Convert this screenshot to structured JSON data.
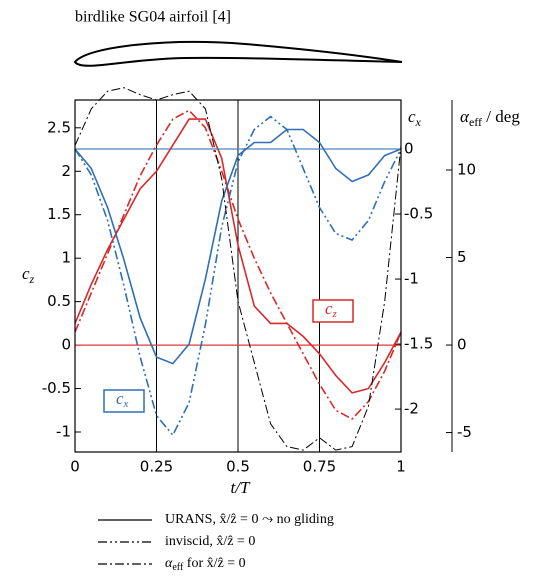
{
  "chart_data": {
    "type": "line",
    "title": "birdlike SG04 airfoil [4]",
    "xlabel": "t/T",
    "ylabel": {
      "text": "c",
      "sub": "z"
    },
    "y2label": {
      "text": "c",
      "sub": "x"
    },
    "y3label": {
      "text": "α",
      "sub": "eff",
      "rest": " / deg"
    },
    "x": [
      0,
      0.05,
      0.1,
      0.15,
      0.2,
      0.25,
      0.3,
      0.35,
      0.4,
      0.45,
      0.5,
      0.55,
      0.6,
      0.65,
      0.7,
      0.75,
      0.8,
      0.85,
      0.9,
      0.95,
      1
    ],
    "xlim": [
      0,
      1
    ],
    "xticks": [
      0,
      0.25,
      0.5,
      0.75,
      1
    ],
    "xgrid": true,
    "ylim": [
      -1.23,
      2.82
    ],
    "yticks": [
      -1,
      -0.5,
      0,
      0.5,
      1,
      1.5,
      2,
      2.5
    ],
    "y2lim": [
      -2.33,
      0.377
    ],
    "y2ticks": [
      -2,
      -1.5,
      -1,
      -0.5,
      0
    ],
    "y3lim": [
      -6.11,
      14
    ],
    "y3ticks": [
      -5,
      0,
      5,
      10
    ],
    "hlines": [
      {
        "axis": "y",
        "value": 0,
        "color": "#e03a3a"
      },
      {
        "axis": "y2",
        "value": 0,
        "color": "#4a86c8"
      }
    ],
    "series": [
      {
        "color": "#d62a2a",
        "style": "solid",
        "axis": "y",
        "values": [
          0.25,
          0.7,
          1.1,
          1.45,
          1.8,
          2.0,
          2.3,
          2.6,
          2.6,
          2.15,
          1.15,
          0.45,
          0.25,
          0.25,
          0.1,
          -0.1,
          -0.35,
          -0.55,
          -0.5,
          -0.2,
          0.15
        ]
      },
      {
        "color": "#d62a2a",
        "style": "dashdot",
        "axis": "y",
        "values": [
          0.15,
          0.6,
          1.05,
          1.5,
          1.95,
          2.3,
          2.6,
          2.7,
          2.5,
          2.0,
          1.45,
          1.0,
          0.6,
          0.25,
          -0.1,
          -0.45,
          -0.75,
          -0.85,
          -0.65,
          -0.3,
          0.15
        ]
      },
      {
        "color": "#2f6fb5",
        "style": "solid",
        "axis": "y2",
        "values": [
          0,
          -0.15,
          -0.45,
          -0.85,
          -1.3,
          -1.6,
          -1.65,
          -1.5,
          -1.0,
          -0.4,
          -0.05,
          0.05,
          0.05,
          0.15,
          0.15,
          0.05,
          -0.15,
          -0.25,
          -0.2,
          -0.05,
          0
        ]
      },
      {
        "color": "#2f6fb5",
        "style": "dashdotdot",
        "axis": "y2",
        "values": [
          0,
          -0.2,
          -0.55,
          -1.05,
          -1.6,
          -2.05,
          -2.2,
          -1.95,
          -1.35,
          -0.6,
          -0.1,
          0.15,
          0.25,
          0.15,
          -0.15,
          -0.45,
          -0.65,
          -0.7,
          -0.55,
          -0.25,
          0
        ]
      },
      {
        "color": "#000000",
        "style": "dashdot",
        "axis": "y3",
        "values": [
          11.4,
          13.5,
          14.5,
          14.7,
          14.3,
          14.0,
          14.3,
          14.5,
          13.5,
          9.5,
          2.5,
          -1,
          -4.5,
          -5.8,
          -6.0,
          -5.3,
          -6.0,
          -5.8,
          -3.5,
          2.5,
          11.4
        ]
      }
    ],
    "annotations": [
      {
        "text": "c",
        "sub": "z",
        "color": "#d62a2a"
      },
      {
        "text": "c",
        "sub": "x",
        "color": "#2f6fb5"
      }
    ],
    "legend": [
      {
        "style": "solid",
        "label": "URANS, x̂/ẑ = 0 ⤳ no gliding"
      },
      {
        "style": "dashdotdot",
        "label": "inviscid, x̂/ẑ = 0"
      },
      {
        "style": "dashdot",
        "text": "α",
        "sub": "eff",
        "rest": " for x̂/ẑ = 0"
      }
    ]
  }
}
